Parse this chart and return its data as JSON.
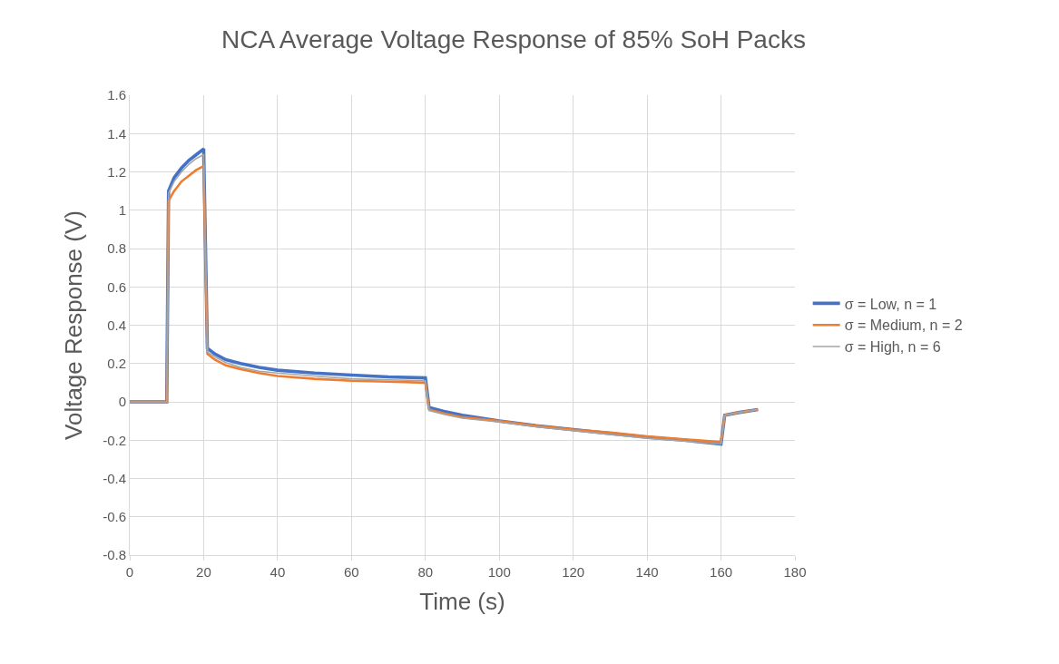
{
  "chart_data": {
    "type": "line",
    "title": "NCA Average Voltage Response of 85% SoH Packs",
    "xlabel": "Time (s)",
    "ylabel": "Voltage Response (V)",
    "x": [
      0,
      10,
      10.5,
      12,
      14,
      16,
      18,
      20,
      21,
      23,
      26,
      30,
      35,
      40,
      50,
      60,
      70,
      80,
      81,
      85,
      90,
      100,
      110,
      120,
      130,
      140,
      150,
      160,
      161,
      165,
      170
    ],
    "series": [
      {
        "name": "σ = Low, n = 1",
        "color": "#4472c4",
        "values": [
          0,
          0,
          1.1,
          1.17,
          1.22,
          1.26,
          1.29,
          1.32,
          0.28,
          0.25,
          0.22,
          0.2,
          0.18,
          0.165,
          0.15,
          0.14,
          0.13,
          0.125,
          -0.03,
          -0.05,
          -0.07,
          -0.1,
          -0.125,
          -0.145,
          -0.165,
          -0.185,
          -0.2,
          -0.22,
          -0.07,
          -0.055,
          -0.04
        ]
      },
      {
        "name": "σ = Medium, n = 2",
        "color": "#ed7d31",
        "values": [
          0,
          0,
          1.05,
          1.1,
          1.15,
          1.18,
          1.21,
          1.23,
          0.25,
          0.22,
          0.19,
          0.17,
          0.15,
          0.135,
          0.12,
          0.11,
          0.105,
          0.1,
          -0.04,
          -0.06,
          -0.08,
          -0.1,
          -0.125,
          -0.145,
          -0.16,
          -0.18,
          -0.195,
          -0.21,
          -0.07,
          -0.055,
          -0.04
        ]
      },
      {
        "name": "σ = High, n = 6",
        "color": "#a5a5a5",
        "values": [
          0,
          0,
          1.09,
          1.15,
          1.2,
          1.24,
          1.27,
          1.29,
          0.26,
          0.235,
          0.205,
          0.18,
          0.16,
          0.15,
          0.135,
          0.12,
          0.115,
          0.11,
          -0.045,
          -0.065,
          -0.085,
          -0.105,
          -0.13,
          -0.15,
          -0.17,
          -0.19,
          -0.205,
          -0.22,
          -0.07,
          -0.055,
          -0.04
        ]
      }
    ],
    "xlim": [
      0,
      180
    ],
    "xticks": [
      0,
      20,
      40,
      60,
      80,
      100,
      120,
      140,
      160,
      180
    ],
    "ylim": [
      -0.8,
      1.6
    ],
    "yticks": [
      -0.8,
      -0.6,
      -0.4,
      -0.2,
      0,
      0.2,
      0.4,
      0.6,
      0.8,
      1,
      1.2,
      1.4,
      1.6
    ],
    "grid": true,
    "legend": "right",
    "marker": "none",
    "line_style": "solid"
  }
}
